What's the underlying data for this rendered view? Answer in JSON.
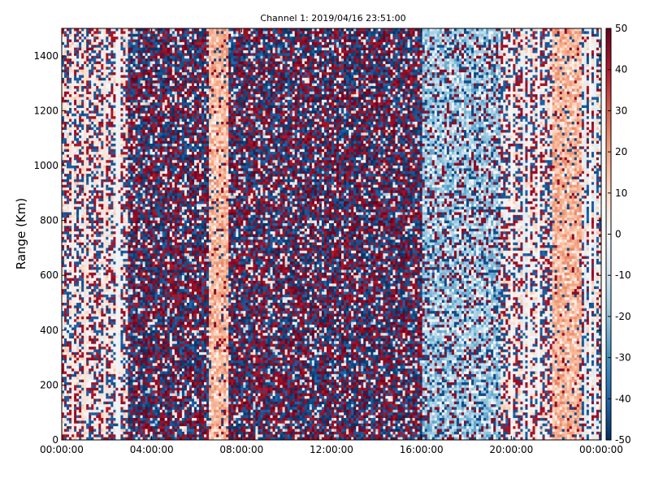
{
  "chart_data": {
    "type": "heatmap",
    "title": "Channel 1: 2019/04/16 23:51:00",
    "ylabel": "Range (Km)",
    "xlabel": "",
    "x_tick_labels": [
      "00:00:00",
      "04:00:00",
      "08:00:00",
      "12:00:00",
      "16:00:00",
      "20:00:00",
      "00:00:00"
    ],
    "x_range_hours": [
      0,
      24
    ],
    "ylim": [
      0,
      1500
    ],
    "y_ticks": [
      0,
      200,
      400,
      600,
      800,
      1000,
      1200,
      1400
    ],
    "colorbar": {
      "range": [
        -50,
        50
      ],
      "ticks": [
        50,
        40,
        30,
        20,
        10,
        0,
        -10,
        -20,
        -30,
        -40,
        -50
      ],
      "colormap": "RdBu_r",
      "colors": [
        "#053061",
        "#2166ac",
        "#4393c3",
        "#92c5de",
        "#d1e5f0",
        "#f7f7f7",
        "#fddbc7",
        "#f4a582",
        "#d6604d",
        "#b2182b",
        "#67001f"
      ]
    },
    "time_bands": [
      {
        "from_hour": 0.0,
        "to_hour": 2.9,
        "pattern": "mixed noise, mostly light/pale with dark red and blue speckles"
      },
      {
        "from_hour": 2.9,
        "to_hour": 6.5,
        "pattern": "dense noise, dark red and dark blue"
      },
      {
        "from_hour": 6.5,
        "to_hour": 7.4,
        "pattern": "light salmon / pale red, ~10 to 25"
      },
      {
        "from_hour": 7.4,
        "to_hour": 16.0,
        "pattern": "dense noise, dark red and dark blue"
      },
      {
        "from_hour": 16.0,
        "to_hour": 19.5,
        "pattern": "light blue / pale blue, ~-10 to -25, with speckles"
      },
      {
        "from_hour": 19.5,
        "to_hour": 21.8,
        "pattern": "mixed pale stripes with dark speckles"
      },
      {
        "from_hour": 21.8,
        "to_hour": 23.1,
        "pattern": "light salmon / pale red, ~10 to 20"
      },
      {
        "from_hour": 23.1,
        "to_hour": 24.0,
        "pattern": "mixed pale and dark stripes"
      }
    ]
  }
}
